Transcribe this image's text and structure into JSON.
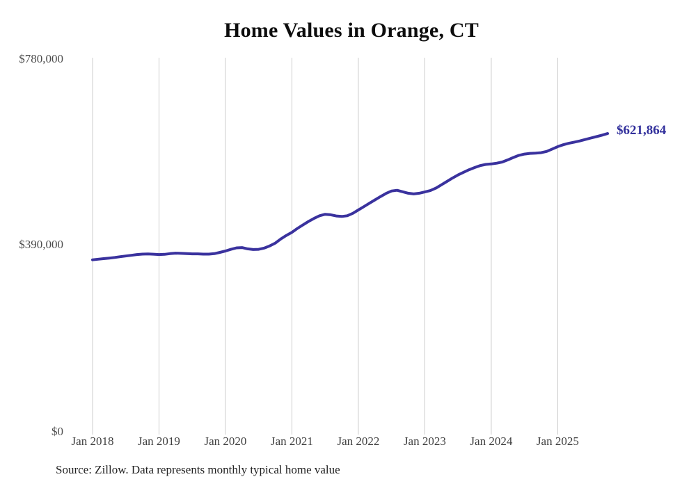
{
  "chart_data": {
    "type": "line",
    "title": "Home Values in Orange, CT",
    "source_note": "Source: Zillow. Data represents monthly typical home value",
    "end_label": "$621,864",
    "end_value": 621864,
    "grid_color": "#cccccc",
    "grid_on": true,
    "legend": "none",
    "y_axis": {
      "min": 0,
      "max": 780000,
      "ticks": [
        "$780,000",
        "$390,000",
        "$0"
      ],
      "tick_values": [
        780000,
        390000,
        0
      ]
    },
    "x_axis": {
      "ticks": [
        "Jan 2018",
        "Jan 2019",
        "Jan 2020",
        "Jan 2021",
        "Jan 2022",
        "Jan 2023",
        "Jan 2024",
        "Jan 2025"
      ],
      "tick_month_indices": [
        0,
        12,
        24,
        36,
        48,
        60,
        72,
        84
      ],
      "start": "Jan 2018",
      "end": "Oct 2025",
      "frequency": "monthly"
    },
    "series": [
      {
        "name": "Typical home value",
        "color": "#3a329e",
        "values": [
          358500,
          359800,
          361000,
          362200,
          363500,
          365000,
          366500,
          368000,
          369500,
          370500,
          370800,
          370300,
          369500,
          370000,
          371500,
          372500,
          372000,
          371500,
          371000,
          371000,
          370500,
          370500,
          371500,
          374000,
          377000,
          380500,
          383500,
          384000,
          381500,
          380000,
          380500,
          383000,
          387500,
          393500,
          402000,
          409500,
          416000,
          424000,
          431500,
          438500,
          445000,
          450500,
          453500,
          452500,
          450000,
          449000,
          450500,
          455500,
          462500,
          469500,
          476500,
          483500,
          490500,
          497000,
          502000,
          503500,
          500500,
          497500,
          496000,
          497500,
          500000,
          503000,
          508000,
          515000,
          522000,
          529000,
          535500,
          541000,
          546500,
          551000,
          555000,
          557500,
          558500,
          560000,
          562500,
          567000,
          572000,
          576500,
          579000,
          580500,
          581000,
          582000,
          584500,
          589500,
          594500,
          598500,
          601500,
          604000,
          606500,
          609500,
          612500,
          615500,
          618500,
          621864
        ]
      }
    ]
  }
}
